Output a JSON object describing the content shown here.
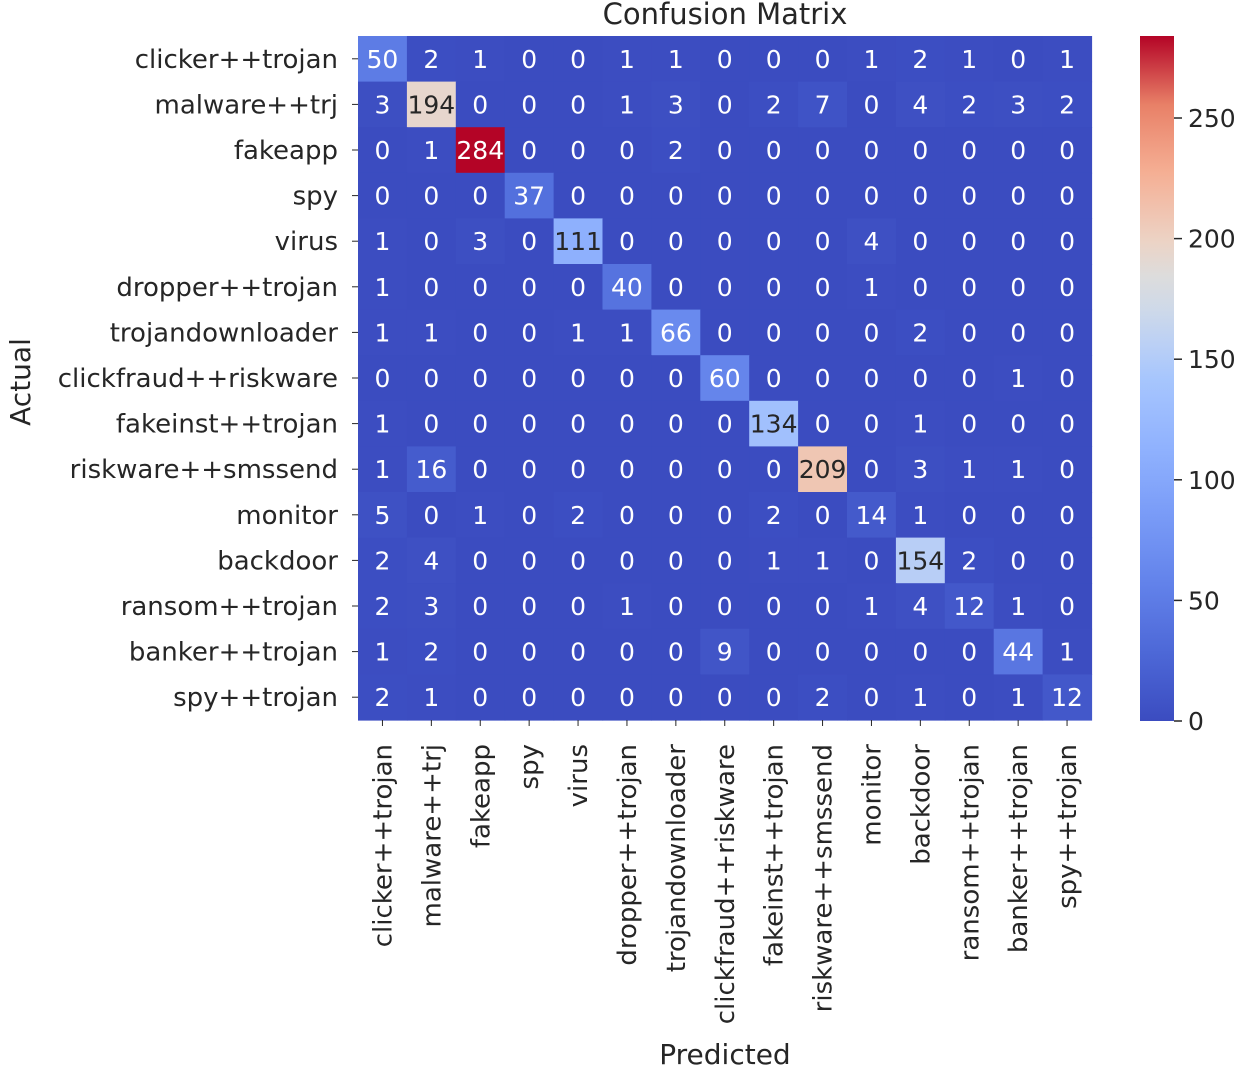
{
  "chart_data": {
    "type": "heatmap",
    "title": "Confusion Matrix",
    "xlabel": "Predicted",
    "ylabel": "Actual",
    "colormap": "coolwarm",
    "color_range": [
      0,
      284
    ],
    "colorbar_ticks": [
      0,
      50,
      100,
      150,
      200,
      250
    ],
    "row_labels": [
      "clicker++trojan",
      "malware++trj",
      "fakeapp",
      "spy",
      "virus",
      "dropper++trojan",
      "trojandownloader",
      "clickfraud++riskware",
      "fakeinst++trojan",
      "riskware++smssend",
      "monitor",
      "backdoor",
      "ransom++trojan",
      "banker++trojan",
      "spy++trojan"
    ],
    "col_labels": [
      "clicker++trojan",
      "malware++trj",
      "fakeapp",
      "spy",
      "virus",
      "dropper++trojan",
      "trojandownloader",
      "clickfraud++riskware",
      "fakeinst++trojan",
      "riskware++smssend",
      "monitor",
      "backdoor",
      "ransom++trojan",
      "banker++trojan",
      "spy++trojan"
    ],
    "values": [
      [
        50,
        2,
        1,
        0,
        0,
        1,
        1,
        0,
        0,
        0,
        1,
        2,
        1,
        0,
        1
      ],
      [
        3,
        194,
        0,
        0,
        0,
        1,
        3,
        0,
        2,
        7,
        0,
        4,
        2,
        3,
        2
      ],
      [
        0,
        1,
        284,
        0,
        0,
        0,
        2,
        0,
        0,
        0,
        0,
        0,
        0,
        0,
        0
      ],
      [
        0,
        0,
        0,
        37,
        0,
        0,
        0,
        0,
        0,
        0,
        0,
        0,
        0,
        0,
        0
      ],
      [
        1,
        0,
        3,
        0,
        111,
        0,
        0,
        0,
        0,
        0,
        4,
        0,
        0,
        0,
        0
      ],
      [
        1,
        0,
        0,
        0,
        0,
        40,
        0,
        0,
        0,
        0,
        1,
        0,
        0,
        0,
        0
      ],
      [
        1,
        1,
        0,
        0,
        1,
        1,
        66,
        0,
        0,
        0,
        0,
        2,
        0,
        0,
        0
      ],
      [
        0,
        0,
        0,
        0,
        0,
        0,
        0,
        60,
        0,
        0,
        0,
        0,
        0,
        1,
        0
      ],
      [
        1,
        0,
        0,
        0,
        0,
        0,
        0,
        0,
        134,
        0,
        0,
        1,
        0,
        0,
        0
      ],
      [
        1,
        16,
        0,
        0,
        0,
        0,
        0,
        0,
        0,
        209,
        0,
        3,
        1,
        1,
        0
      ],
      [
        5,
        0,
        1,
        0,
        2,
        0,
        0,
        0,
        2,
        0,
        14,
        1,
        0,
        0,
        0
      ],
      [
        2,
        4,
        0,
        0,
        0,
        0,
        0,
        0,
        1,
        1,
        0,
        154,
        2,
        0,
        0
      ],
      [
        2,
        3,
        0,
        0,
        0,
        1,
        0,
        0,
        0,
        0,
        1,
        4,
        12,
        1,
        0
      ],
      [
        1,
        2,
        0,
        0,
        0,
        0,
        0,
        9,
        0,
        0,
        0,
        0,
        0,
        44,
        1
      ],
      [
        2,
        1,
        0,
        0,
        0,
        0,
        0,
        0,
        0,
        2,
        0,
        1,
        0,
        1,
        12
      ]
    ]
  }
}
